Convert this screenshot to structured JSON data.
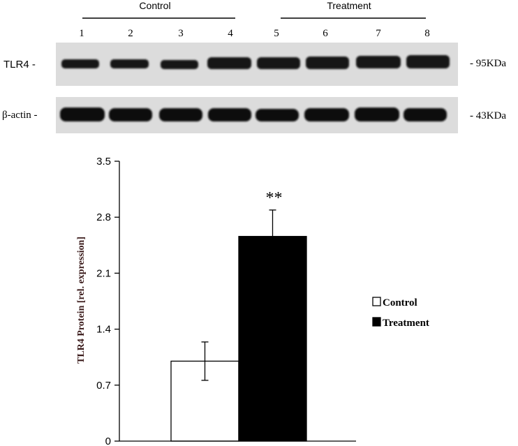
{
  "blot": {
    "groups": [
      {
        "label": "Control",
        "lanes": [
          1,
          2,
          3,
          4
        ]
      },
      {
        "label": "Treatment",
        "lanes": [
          5,
          6,
          7,
          8
        ]
      }
    ],
    "lanes": [
      "1",
      "2",
      "3",
      "4",
      "5",
      "6",
      "7",
      "8"
    ],
    "rows": [
      {
        "label": "TLR4 -",
        "size": "- 95KDa"
      },
      {
        "label": "β-actin -",
        "size": "- 43KDa"
      }
    ]
  },
  "chart_data": {
    "type": "bar",
    "categories": [
      "Control",
      "Treatment"
    ],
    "values": [
      1.0,
      2.56
    ],
    "errors": [
      0.24,
      0.33
    ],
    "colors": [
      "#ffffff",
      "#000000"
    ],
    "ylabel": "TLR4 Protein [rel. expression]",
    "ylim": [
      0,
      3.5
    ],
    "yticks": [
      "0",
      "0.7",
      "1.4",
      "2.1",
      "2.8",
      "3.5"
    ],
    "significance": [
      {
        "category": "Treatment",
        "label": "**"
      }
    ],
    "legend": {
      "position": "right",
      "entries": [
        {
          "label": "Control",
          "color": "#ffffff"
        },
        {
          "label": "Treatment",
          "color": "#000000"
        }
      ]
    },
    "grid": false
  }
}
